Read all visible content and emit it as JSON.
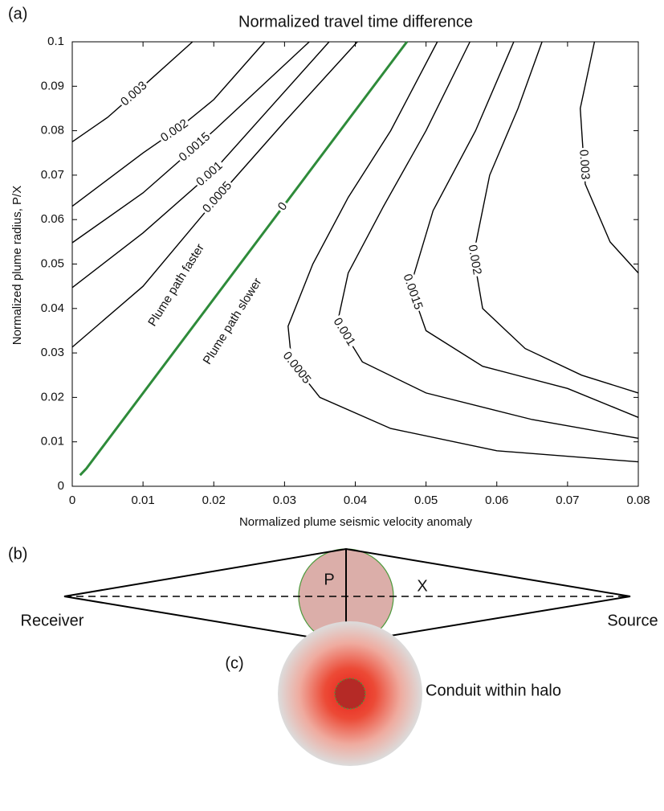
{
  "chart_data": {
    "type": "contour",
    "panel_label": "(a)",
    "title": "Normalized travel time difference",
    "x_label": "Normalized plume seismic velocity anomaly",
    "y_label": "Normalized plume radius, P/X",
    "xlim": [
      0,
      0.08
    ],
    "ylim": [
      0,
      0.1
    ],
    "xticks": [
      0,
      0.01,
      0.02,
      0.03,
      0.04,
      0.05,
      0.06,
      0.07,
      0.08
    ],
    "yticks": [
      0,
      0.01,
      0.02,
      0.03,
      0.04,
      0.05,
      0.06,
      0.07,
      0.08,
      0.09,
      0.1
    ],
    "contours": [
      {
        "level": 0.003,
        "color": "#000000",
        "x": [
          0,
          0.005,
          0.01,
          0.017
        ],
        "y": [
          0.0775,
          0.083,
          0.09,
          0.1
        ]
      },
      {
        "level": 0.002,
        "color": "#000000",
        "x": [
          0,
          0.005,
          0.01,
          0.015,
          0.02,
          0.0272
        ],
        "y": [
          0.063,
          0.069,
          0.075,
          0.0805,
          0.087,
          0.1
        ]
      },
      {
        "level": 0.0015,
        "color": "#000000",
        "x": [
          0,
          0.01,
          0.02,
          0.0335
        ],
        "y": [
          0.0548,
          0.066,
          0.08,
          0.1
        ]
      },
      {
        "level": 0.001,
        "color": "#000000",
        "x": [
          0,
          0.01,
          0.02,
          0.0363
        ],
        "y": [
          0.0447,
          0.057,
          0.071,
          0.1
        ]
      },
      {
        "level": 0.0005,
        "color": "#000000",
        "x": [
          0,
          0.01,
          0.02,
          0.03,
          0.0403
        ],
        "y": [
          0.0313,
          0.045,
          0.064,
          0.082,
          0.1
        ]
      },
      {
        "level": 0,
        "color": "#2e8b3a",
        "x": [
          0.0011,
          0.002,
          0.0473
        ],
        "y": [
          0.0025,
          0.004,
          0.1
        ]
      },
      {
        "level": 0.0005,
        "color": "#000000",
        "x": [
          0.0516,
          0.045,
          0.039,
          0.034,
          0.0305,
          0.031,
          0.035,
          0.045,
          0.06,
          0.08
        ],
        "y": [
          0.1,
          0.08,
          0.065,
          0.05,
          0.036,
          0.028,
          0.02,
          0.013,
          0.008,
          0.0055
        ]
      },
      {
        "level": 0.001,
        "color": "#000000",
        "x": [
          0.0562,
          0.05,
          0.044,
          0.039,
          0.0375,
          0.041,
          0.05,
          0.065,
          0.08
        ],
        "y": [
          0.1,
          0.08,
          0.063,
          0.048,
          0.037,
          0.028,
          0.021,
          0.015,
          0.0108
        ]
      },
      {
        "level": 0.0015,
        "color": "#000000",
        "x": [
          0.0624,
          0.057,
          0.051,
          0.0478,
          0.05,
          0.058,
          0.07,
          0.08
        ],
        "y": [
          0.1,
          0.08,
          0.062,
          0.045,
          0.035,
          0.027,
          0.022,
          0.0155
        ]
      },
      {
        "level": 0.002,
        "color": "#000000",
        "x": [
          0.0664,
          0.063,
          0.059,
          0.0567,
          0.058,
          0.064,
          0.072,
          0.08
        ],
        "y": [
          0.1,
          0.085,
          0.07,
          0.052,
          0.04,
          0.031,
          0.025,
          0.021
        ]
      },
      {
        "level": 0.003,
        "color": "#000000",
        "x": [
          0.0738,
          0.0718,
          0.0725,
          0.076,
          0.08
        ],
        "y": [
          0.1,
          0.085,
          0.068,
          0.055,
          0.048
        ]
      }
    ],
    "annotations": [
      "Plume path faster",
      "Plume path slower"
    ]
  },
  "diagram_b": {
    "panel_label": "(b)",
    "receiver": "Receiver",
    "source": "Source",
    "radius_label": "P",
    "distance_label": "X"
  },
  "diagram_c": {
    "panel_label": "(c)",
    "caption": "Conduit within halo"
  }
}
